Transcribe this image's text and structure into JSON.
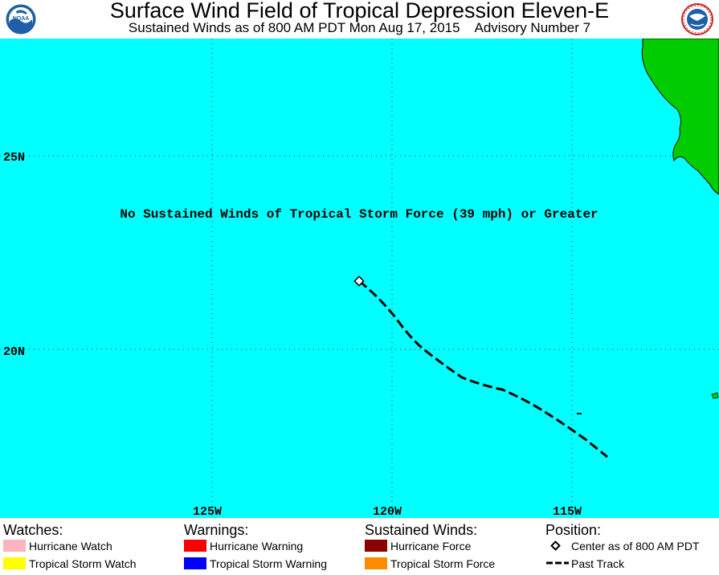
{
  "header": {
    "title": "Surface Wind Field of Tropical Depression Eleven-E",
    "subtitle": "Sustained Winds as of 800 AM PDT Mon Aug 17, 2015    Advisory Number 7",
    "left_logo_icon": "noaa-logo-icon",
    "right_logo_icon": "national-weather-service-logo-icon"
  },
  "map": {
    "message": "No Sustained Winds of Tropical Storm Force (39 mph) or Greater",
    "lat_labels": [
      "25N",
      "20N"
    ],
    "lon_labels": [
      "125W",
      "120W",
      "115W"
    ],
    "colors": {
      "ocean": "#00ffff",
      "land": "#00cc00",
      "grid": "#555555",
      "track": "#000000"
    }
  },
  "legend": {
    "watches": {
      "title": "Watches:",
      "items": [
        {
          "label": "Hurricane Watch",
          "color": "#ffb3c1"
        },
        {
          "label": "Tropical Storm Watch",
          "color": "#ffff00"
        }
      ]
    },
    "warnings": {
      "title": "Warnings:",
      "items": [
        {
          "label": "Hurricane Warning",
          "color": "#ff0000"
        },
        {
          "label": "Tropical Storm Warning",
          "color": "#0000ff"
        }
      ]
    },
    "winds": {
      "title": "Sustained Winds:",
      "items": [
        {
          "label": "Hurricane Force",
          "color": "#8b0000"
        },
        {
          "label": "Tropical Storm Force",
          "color": "#ff8c00"
        }
      ]
    },
    "position": {
      "title": "Position:",
      "items": [
        {
          "label": "Center as of 800 AM PDT",
          "icon": "diamond-icon"
        },
        {
          "label": "Past Track",
          "icon": "dashed-line-icon"
        }
      ]
    }
  }
}
